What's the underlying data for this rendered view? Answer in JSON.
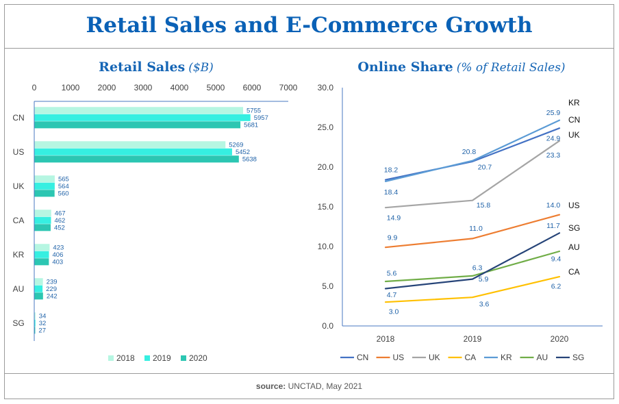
{
  "header": {
    "title": "Retail Sales and E-Commerce Growth"
  },
  "footer": {
    "source_label": "source:",
    "source_text": "UNCTAD, May 2021"
  },
  "chart_data": [
    {
      "type": "bar",
      "title": "Retail Sales",
      "title_unit": "($B)",
      "categories": [
        "CN",
        "US",
        "UK",
        "CA",
        "KR",
        "AU",
        "SG"
      ],
      "series": [
        {
          "name": "2018",
          "color": "#b6f6e2",
          "values": [
            5755,
            5269,
            565,
            467,
            423,
            239,
            34
          ]
        },
        {
          "name": "2019",
          "color": "#36efe1",
          "values": [
            5957,
            5452,
            564,
            462,
            406,
            229,
            32
          ]
        },
        {
          "name": "2020",
          "color": "#2cc6b2",
          "values": [
            5681,
            5638,
            560,
            452,
            403,
            242,
            27
          ]
        }
      ],
      "xlim": [
        0,
        7000
      ],
      "xticks": [
        0,
        1000,
        2000,
        3000,
        4000,
        5000,
        6000,
        7000
      ],
      "legend_position": "bottom"
    },
    {
      "type": "line",
      "title": "Online Share",
      "title_unit": "(% of Retail Sales)",
      "x": [
        "2018",
        "2019",
        "2020"
      ],
      "series": [
        {
          "name": "CN",
          "color": "#4472c4",
          "values": [
            18.4,
            20.7,
            24.9
          ]
        },
        {
          "name": "US",
          "color": "#ed7d31",
          "values": [
            9.9,
            11.0,
            14.0
          ]
        },
        {
          "name": "UK",
          "color": "#a5a5a5",
          "values": [
            14.9,
            15.8,
            23.3
          ]
        },
        {
          "name": "CA",
          "color": "#ffc000",
          "values": [
            3.0,
            3.6,
            6.2
          ]
        },
        {
          "name": "KR",
          "color": "#5b9bd5",
          "values": [
            18.2,
            20.8,
            25.9
          ]
        },
        {
          "name": "AU",
          "color": "#70ad47",
          "values": [
            5.6,
            6.3,
            9.4
          ]
        },
        {
          "name": "SG",
          "color": "#264478",
          "values": [
            4.7,
            5.9,
            11.7
          ]
        }
      ],
      "ylim": [
        0,
        30
      ],
      "yticks": [
        0,
        5,
        10,
        15,
        20,
        25,
        30
      ],
      "legend_position": "bottom"
    }
  ]
}
